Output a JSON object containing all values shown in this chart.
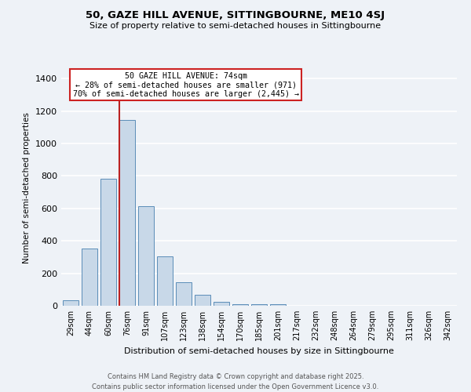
{
  "title1": "50, GAZE HILL AVENUE, SITTINGBOURNE, ME10 4SJ",
  "title2": "Size of property relative to semi-detached houses in Sittingbourne",
  "xlabel": "Distribution of semi-detached houses by size in Sittingbourne",
  "ylabel": "Number of semi-detached properties",
  "categories": [
    "29sqm",
    "44sqm",
    "60sqm",
    "76sqm",
    "91sqm",
    "107sqm",
    "123sqm",
    "138sqm",
    "154sqm",
    "170sqm",
    "185sqm",
    "201sqm",
    "217sqm",
    "232sqm",
    "248sqm",
    "264sqm",
    "279sqm",
    "295sqm",
    "311sqm",
    "326sqm",
    "342sqm"
  ],
  "values": [
    35,
    355,
    785,
    1145,
    615,
    305,
    145,
    68,
    25,
    12,
    12,
    12,
    0,
    0,
    0,
    0,
    0,
    0,
    0,
    0,
    0
  ],
  "bar_color": "#c8d8e8",
  "bar_edge_color": "#5b8db8",
  "property_size_label": "50 GAZE HILL AVENUE: 74sqm",
  "pct_smaller": 28,
  "pct_larger": 70,
  "n_smaller": 971,
  "n_larger": 2445,
  "vline_color": "#bb2222",
  "ann_edge_color": "#cc2222",
  "ylim": [
    0,
    1450
  ],
  "yticks": [
    0,
    200,
    400,
    600,
    800,
    1000,
    1200,
    1400
  ],
  "footer1": "Contains HM Land Registry data © Crown copyright and database right 2025.",
  "footer2": "Contains public sector information licensed under the Open Government Licence v3.0.",
  "bg_color": "#eef2f7",
  "grid_color": "#ffffff",
  "bin_width": 15,
  "vline_x_bin": 3
}
